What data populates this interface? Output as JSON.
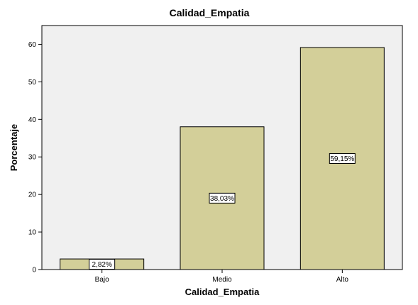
{
  "chart_data": {
    "type": "bar",
    "title": "Calidad_Empatia",
    "xlabel": "Calidad_Empatia",
    "ylabel": "Porcentaje",
    "categories": [
      "Bajo",
      "Medio",
      "Alto"
    ],
    "values": [
      2.82,
      38.03,
      59.15
    ],
    "data_labels": [
      "2,82%",
      "38,03%",
      "59,15%"
    ],
    "ylim": [
      0,
      65
    ],
    "yticks": [
      0,
      10,
      20,
      30,
      40,
      50,
      60
    ],
    "grid": false,
    "legend": "none",
    "colors": {
      "bar_fill": "#d3cf99",
      "bar_stroke": "#000000",
      "plot_background": "#f0f0f0",
      "label_box": "#ffffff"
    }
  }
}
